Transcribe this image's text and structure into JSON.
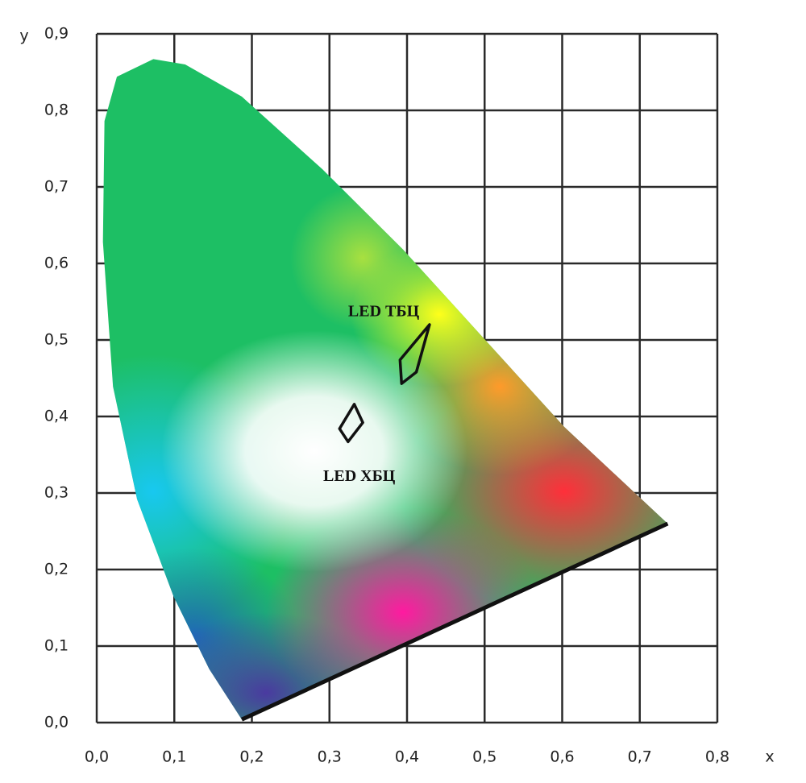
{
  "chart_data": {
    "type": "chromaticity",
    "x_label": "x",
    "y_label": "y",
    "xlim": [
      0,
      0.8
    ],
    "ylim": [
      0,
      0.9
    ],
    "xticks": [
      {
        "value": 0,
        "label": "0,0"
      },
      {
        "value": 0.1,
        "label": "0,1"
      },
      {
        "value": 0.2,
        "label": "0,2"
      },
      {
        "value": 0.3,
        "label": "0,3"
      },
      {
        "value": 0.4,
        "label": "0,4"
      },
      {
        "value": 0.5,
        "label": "0,5"
      },
      {
        "value": 0.6,
        "label": "0,6"
      },
      {
        "value": 0.7,
        "label": "0,7"
      },
      {
        "value": 0.8,
        "label": "0,8"
      }
    ],
    "yticks": [
      {
        "value": 0,
        "label": "0,0"
      },
      {
        "value": 0.1,
        "label": "0,1"
      },
      {
        "value": 0.2,
        "label": "0,2"
      },
      {
        "value": 0.3,
        "label": "0,3"
      },
      {
        "value": 0.4,
        "label": "0,4"
      },
      {
        "value": 0.5,
        "label": "0,5"
      },
      {
        "value": 0.6,
        "label": "0,6"
      },
      {
        "value": 0.7,
        "label": "0,7"
      },
      {
        "value": 0.8,
        "label": "0,8"
      },
      {
        "value": 0.9,
        "label": "0,9"
      }
    ],
    "grid": true,
    "locus": {
      "x": [
        0.187,
        0.145,
        0.099,
        0.052,
        0.021,
        0.008,
        0.01,
        0.026,
        0.073,
        0.114,
        0.187,
        0.291,
        0.395,
        0.499,
        0.603,
        0.736
      ],
      "y": [
        0.004,
        0.07,
        0.165,
        0.292,
        0.439,
        0.628,
        0.786,
        0.844,
        0.867,
        0.86,
        0.818,
        0.723,
        0.618,
        0.502,
        0.386,
        0.26
      ]
    },
    "series": [
      {
        "name": "LED ТБЦ",
        "color": "#111111",
        "x": [
          0.429,
          0.412,
          0.393,
          0.391
        ],
        "y": [
          0.52,
          0.458,
          0.443,
          0.474
        ]
      },
      {
        "name": "LED ХБЦ",
        "color": "#111111",
        "x": [
          0.332,
          0.343,
          0.324,
          0.313
        ],
        "y": [
          0.416,
          0.392,
          0.367,
          0.384
        ]
      }
    ]
  }
}
